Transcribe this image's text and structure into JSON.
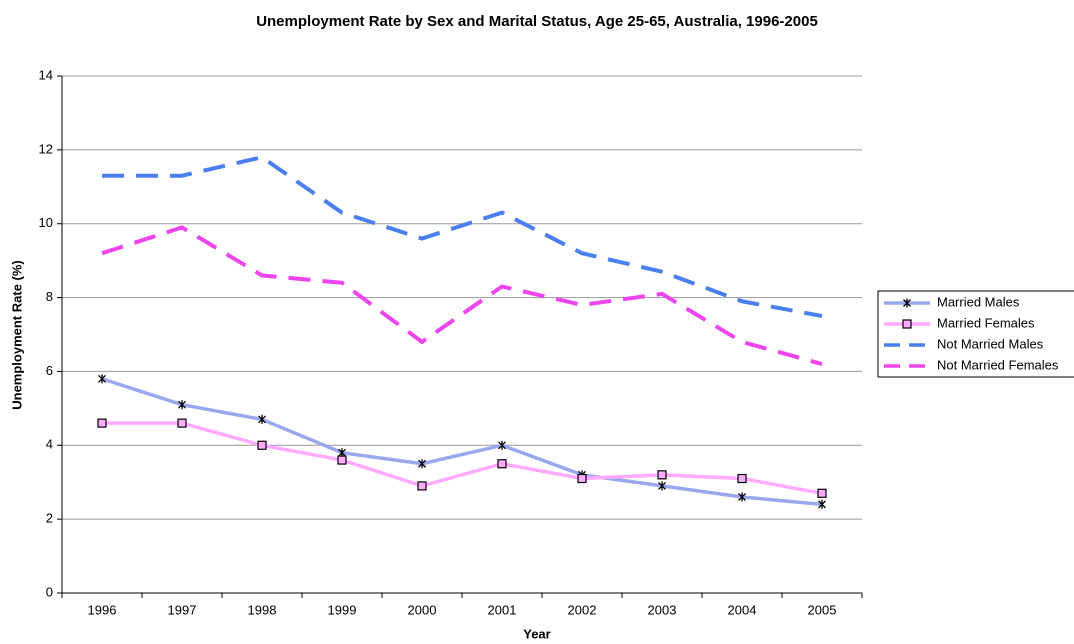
{
  "chart_data": {
    "type": "line",
    "title": "Unemployment Rate by Sex and Marital Status, Age 25-65, Australia, 1996-2005",
    "x_label": "Year",
    "y_label": "Unemployment Rate (%)",
    "categories": [
      "1996",
      "1997",
      "1998",
      "1999",
      "2000",
      "2001",
      "2002",
      "2003",
      "2004",
      "2005"
    ],
    "series": [
      {
        "name": "Married Males",
        "color": "#99a8ee",
        "line_style": "solid",
        "marker": "x",
        "values": [
          5.8,
          5.1,
          4.7,
          3.8,
          3.5,
          4.0,
          3.2,
          2.9,
          2.6,
          2.4
        ]
      },
      {
        "name": "Married Females",
        "color": "#ffaaff",
        "line_style": "solid",
        "marker": "square",
        "values": [
          4.6,
          4.6,
          4.0,
          3.6,
          2.9,
          3.5,
          3.1,
          3.2,
          3.1,
          2.7
        ]
      },
      {
        "name": "Not Married Males",
        "color": "#4a7fef",
        "line_style": "dashed",
        "marker": "none",
        "values": [
          11.3,
          11.3,
          11.8,
          10.3,
          9.6,
          10.3,
          9.2,
          8.7,
          7.9,
          7.5
        ]
      },
      {
        "name": "Not Married Females",
        "color": "#ee44ee",
        "line_style": "dashed",
        "marker": "none",
        "values": [
          9.2,
          9.9,
          8.6,
          8.4,
          6.8,
          8.3,
          7.8,
          8.1,
          6.8,
          6.2
        ]
      }
    ],
    "ylim": [
      0,
      14
    ],
    "yticks": [
      0,
      2,
      4,
      6,
      8,
      10,
      12,
      14
    ],
    "grid": true,
    "legend": "right"
  }
}
